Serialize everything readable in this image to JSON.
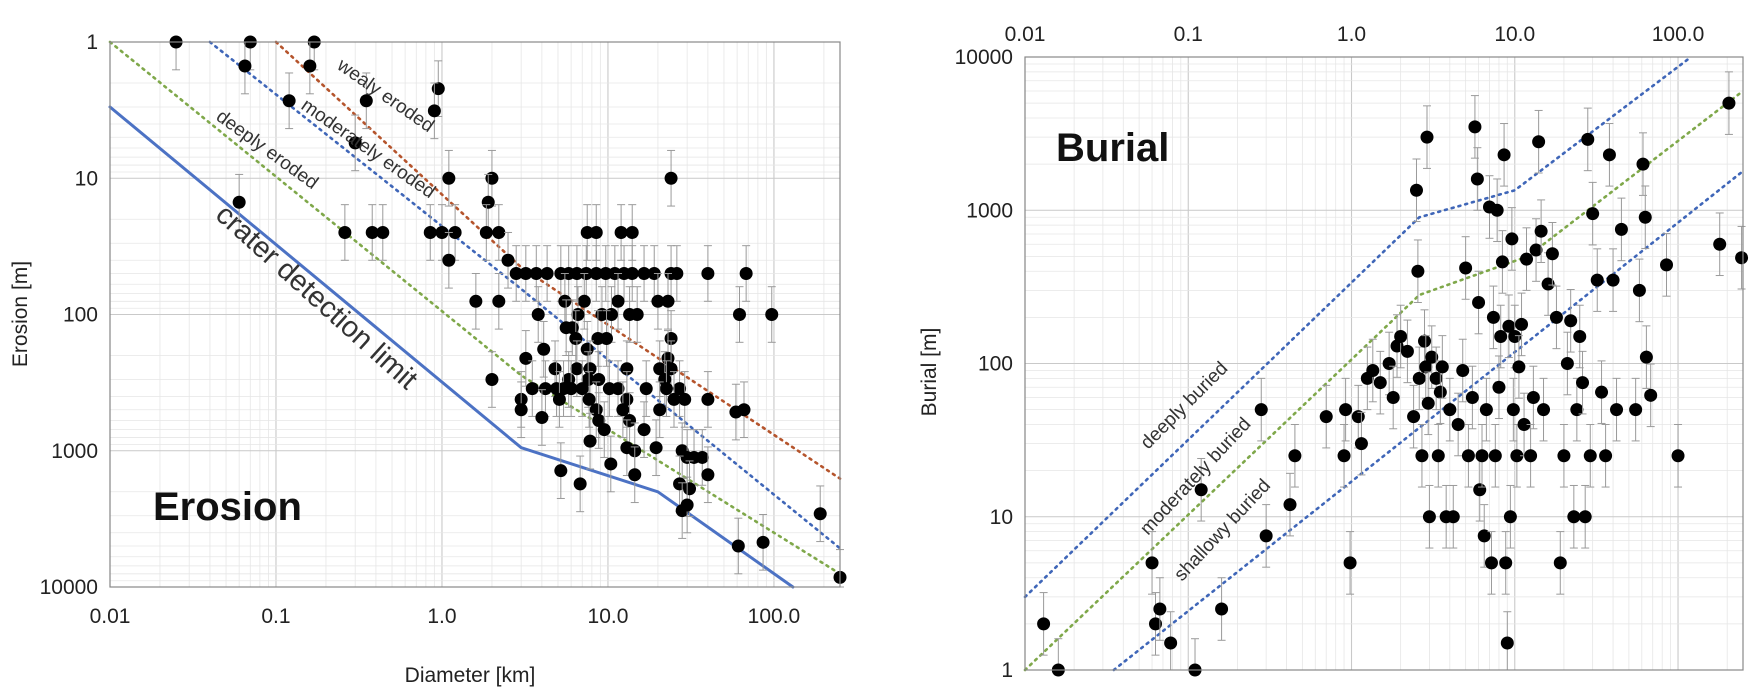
{
  "chart_data": [
    {
      "type": "scatter",
      "title": "Erosion",
      "xlabel": "Diameter [km]",
      "ylabel": "Erosion [m]",
      "x_scale": "log",
      "y_scale": "log",
      "y_inverted": true,
      "xlim": [
        0.01,
        250
      ],
      "ylim": [
        1,
        10000
      ],
      "x_ticks": [
        "0.01",
        "0.1",
        "1.0",
        "10.0",
        "100.0"
      ],
      "y_ticks": [
        "1",
        "10",
        "100",
        "1000",
        "10000"
      ],
      "grid": true,
      "annotations": [
        {
          "text": "wealy eroded",
          "style": "line"
        },
        {
          "text": "moderately eroded",
          "style": "line"
        },
        {
          "text": "deeply eroded",
          "style": "line"
        },
        {
          "text": "crater detection limit",
          "style": "big"
        }
      ],
      "lines": [
        {
          "label": "wealy eroded",
          "color": "#b5542c",
          "dash": "dotted",
          "points": [
            [
              0.1,
              1
            ],
            [
              3,
              45
            ],
            [
              250,
              1600
            ]
          ]
        },
        {
          "label": "moderately eroded",
          "color": "#3f66b8",
          "dash": "dotted",
          "points": [
            [
              0.04,
              1
            ],
            [
              3,
              65
            ],
            [
              250,
              5200
            ]
          ]
        },
        {
          "label": "deeply eroded",
          "color": "#7fa84a",
          "dash": "dotted",
          "points": [
            [
              0.01,
              1
            ],
            [
              3,
              280
            ],
            [
              250,
              8000
            ]
          ]
        },
        {
          "label": "crater detection limit",
          "color": "#4c72c4",
          "dash": "solid",
          "points": [
            [
              0.01,
              3
            ],
            [
              3,
              950
            ],
            [
              20,
              2000
            ],
            [
              130,
              10000
            ]
          ]
        }
      ],
      "points": [
        {
          "x": 0.025,
          "y": 1
        },
        {
          "x": 0.07,
          "y": 1
        },
        {
          "x": 0.17,
          "y": 1
        },
        {
          "x": 0.065,
          "y": 1.5
        },
        {
          "x": 0.16,
          "y": 1.5
        },
        {
          "x": 0.95,
          "y": 2.2
        },
        {
          "x": 0.12,
          "y": 2.7
        },
        {
          "x": 0.35,
          "y": 2.7
        },
        {
          "x": 0.9,
          "y": 3.2
        },
        {
          "x": 0.3,
          "y": 5.5
        },
        {
          "x": 2.0,
          "y": 10
        },
        {
          "x": 1.1,
          "y": 10
        },
        {
          "x": 24,
          "y": 10
        },
        {
          "x": 0.06,
          "y": 15
        },
        {
          "x": 1.9,
          "y": 15
        },
        {
          "x": 0.26,
          "y": 25
        },
        {
          "x": 0.38,
          "y": 25
        },
        {
          "x": 0.44,
          "y": 25
        },
        {
          "x": 0.85,
          "y": 25
        },
        {
          "x": 1.0,
          "y": 25
        },
        {
          "x": 1.2,
          "y": 25
        },
        {
          "x": 1.85,
          "y": 25
        },
        {
          "x": 2.2,
          "y": 25
        },
        {
          "x": 7.5,
          "y": 25
        },
        {
          "x": 8.5,
          "y": 25
        },
        {
          "x": 12,
          "y": 25
        },
        {
          "x": 14,
          "y": 25
        },
        {
          "x": 1.1,
          "y": 40
        },
        {
          "x": 2.5,
          "y": 40
        },
        {
          "x": 2.8,
          "y": 50
        },
        {
          "x": 3.2,
          "y": 50
        },
        {
          "x": 3.7,
          "y": 50
        },
        {
          "x": 4.3,
          "y": 50
        },
        {
          "x": 5.2,
          "y": 50
        },
        {
          "x": 5.8,
          "y": 50
        },
        {
          "x": 6.5,
          "y": 50
        },
        {
          "x": 7.4,
          "y": 50
        },
        {
          "x": 8.5,
          "y": 50
        },
        {
          "x": 9.7,
          "y": 50
        },
        {
          "x": 11,
          "y": 50
        },
        {
          "x": 12.5,
          "y": 50
        },
        {
          "x": 14,
          "y": 50
        },
        {
          "x": 16.5,
          "y": 50
        },
        {
          "x": 19,
          "y": 50
        },
        {
          "x": 24,
          "y": 50
        },
        {
          "x": 26,
          "y": 50
        },
        {
          "x": 40,
          "y": 50
        },
        {
          "x": 68,
          "y": 50
        },
        {
          "x": 1.6,
          "y": 80
        },
        {
          "x": 2.2,
          "y": 80
        },
        {
          "x": 5.5,
          "y": 80
        },
        {
          "x": 7.2,
          "y": 80
        },
        {
          "x": 11.5,
          "y": 80
        },
        {
          "x": 20,
          "y": 80
        },
        {
          "x": 23,
          "y": 80
        },
        {
          "x": 3.8,
          "y": 100
        },
        {
          "x": 6.6,
          "y": 100
        },
        {
          "x": 9.2,
          "y": 100
        },
        {
          "x": 10.5,
          "y": 100
        },
        {
          "x": 13.5,
          "y": 100
        },
        {
          "x": 15,
          "y": 100
        },
        {
          "x": 62,
          "y": 100
        },
        {
          "x": 97,
          "y": 100
        },
        {
          "x": 5.6,
          "y": 125
        },
        {
          "x": 6.1,
          "y": 125
        },
        {
          "x": 6.4,
          "y": 150
        },
        {
          "x": 8.7,
          "y": 150
        },
        {
          "x": 9.8,
          "y": 150
        },
        {
          "x": 24,
          "y": 150
        },
        {
          "x": 4.1,
          "y": 180
        },
        {
          "x": 7.5,
          "y": 180
        },
        {
          "x": 3.2,
          "y": 210
        },
        {
          "x": 23,
          "y": 210
        },
        {
          "x": 4.8,
          "y": 250
        },
        {
          "x": 6.5,
          "y": 250
        },
        {
          "x": 7.8,
          "y": 250
        },
        {
          "x": 13,
          "y": 250
        },
        {
          "x": 20.5,
          "y": 250
        },
        {
          "x": 24,
          "y": 250
        },
        {
          "x": 2.0,
          "y": 300
        },
        {
          "x": 5.8,
          "y": 300
        },
        {
          "x": 7.6,
          "y": 300
        },
        {
          "x": 8.8,
          "y": 300
        },
        {
          "x": 22,
          "y": 300
        },
        {
          "x": 3.5,
          "y": 350
        },
        {
          "x": 4.2,
          "y": 350
        },
        {
          "x": 4.9,
          "y": 350
        },
        {
          "x": 5.4,
          "y": 350
        },
        {
          "x": 6.0,
          "y": 350
        },
        {
          "x": 7.0,
          "y": 350
        },
        {
          "x": 10.2,
          "y": 350
        },
        {
          "x": 11.5,
          "y": 350
        },
        {
          "x": 17,
          "y": 350
        },
        {
          "x": 22.5,
          "y": 350
        },
        {
          "x": 27,
          "y": 350
        },
        {
          "x": 3.0,
          "y": 420
        },
        {
          "x": 5.1,
          "y": 420
        },
        {
          "x": 7.7,
          "y": 420
        },
        {
          "x": 13,
          "y": 420
        },
        {
          "x": 25,
          "y": 420
        },
        {
          "x": 29,
          "y": 420
        },
        {
          "x": 40,
          "y": 420
        },
        {
          "x": 3.0,
          "y": 500
        },
        {
          "x": 8.5,
          "y": 500
        },
        {
          "x": 12.3,
          "y": 500
        },
        {
          "x": 20.5,
          "y": 500
        },
        {
          "x": 66,
          "y": 500
        },
        {
          "x": 59,
          "y": 520
        },
        {
          "x": 4.0,
          "y": 570
        },
        {
          "x": 8.8,
          "y": 600
        },
        {
          "x": 13.5,
          "y": 600
        },
        {
          "x": 9.5,
          "y": 700
        },
        {
          "x": 16.5,
          "y": 700
        },
        {
          "x": 7.8,
          "y": 850
        },
        {
          "x": 13,
          "y": 950
        },
        {
          "x": 19.5,
          "y": 950
        },
        {
          "x": 28,
          "y": 1000
        },
        {
          "x": 14.5,
          "y": 1000
        },
        {
          "x": 33,
          "y": 1120
        },
        {
          "x": 30,
          "y": 1120
        },
        {
          "x": 37,
          "y": 1120
        },
        {
          "x": 10.4,
          "y": 1250
        },
        {
          "x": 5.2,
          "y": 1400
        },
        {
          "x": 14.5,
          "y": 1500
        },
        {
          "x": 40,
          "y": 1500
        },
        {
          "x": 6.8,
          "y": 1750
        },
        {
          "x": 27,
          "y": 1750
        },
        {
          "x": 31,
          "y": 1900
        },
        {
          "x": 28,
          "y": 2750
        },
        {
          "x": 30,
          "y": 2500
        },
        {
          "x": 190,
          "y": 2900
        },
        {
          "x": 86,
          "y": 4700
        },
        {
          "x": 61,
          "y": 5000
        },
        {
          "x": 250,
          "y": 8500
        }
      ]
    },
    {
      "type": "scatter",
      "title": "Burial",
      "xlabel": "",
      "ylabel": "Burial [m]",
      "x_scale": "log",
      "y_scale": "log",
      "x_axis_position": "top",
      "xlim": [
        0.01,
        250
      ],
      "ylim": [
        1,
        10000
      ],
      "x_ticks": [
        "0.01",
        "0.1",
        "1.0",
        "10.0",
        "100.0"
      ],
      "y_ticks": [
        "1",
        "10",
        "100",
        "1000",
        "10000"
      ],
      "grid": true,
      "annotations": [
        {
          "text": "deeply buried",
          "style": "line"
        },
        {
          "text": "moderately buried",
          "style": "line"
        },
        {
          "text": "shallowy buried",
          "style": "line"
        }
      ],
      "lines": [
        {
          "label": "deeply buried",
          "color": "#3f66b8",
          "dash": "dotted",
          "points": [
            [
              0.01,
              3
            ],
            [
              2.6,
              900
            ],
            [
              10,
              1350
            ],
            [
              120,
              10000
            ]
          ]
        },
        {
          "label": "moderately buried",
          "color": "#7fa84a",
          "dash": "dotted",
          "points": [
            [
              0.01,
              1
            ],
            [
              2.6,
              280
            ],
            [
              12,
              500
            ],
            [
              250,
              6000
            ]
          ]
        },
        {
          "label": "shallowy buried",
          "color": "#3f66b8",
          "dash": "dotted",
          "points": [
            [
              0.035,
              1
            ],
            [
              250,
              1800
            ]
          ]
        }
      ],
      "points": [
        {
          "x": 0.013,
          "y": 2
        },
        {
          "x": 0.016,
          "y": 1
        },
        {
          "x": 0.11,
          "y": 1
        },
        {
          "x": 0.06,
          "y": 5
        },
        {
          "x": 0.063,
          "y": 2
        },
        {
          "x": 0.067,
          "y": 2.5
        },
        {
          "x": 0.078,
          "y": 1.5
        },
        {
          "x": 0.12,
          "y": 15
        },
        {
          "x": 0.16,
          "y": 2.5
        },
        {
          "x": 0.28,
          "y": 50
        },
        {
          "x": 0.3,
          "y": 7.5
        },
        {
          "x": 0.42,
          "y": 12
        },
        {
          "x": 0.45,
          "y": 25
        },
        {
          "x": 0.7,
          "y": 45
        },
        {
          "x": 0.9,
          "y": 25
        },
        {
          "x": 0.92,
          "y": 50
        },
        {
          "x": 0.98,
          "y": 5
        },
        {
          "x": 1.1,
          "y": 45
        },
        {
          "x": 1.15,
          "y": 30
        },
        {
          "x": 1.25,
          "y": 80
        },
        {
          "x": 1.35,
          "y": 90
        },
        {
          "x": 1.5,
          "y": 75
        },
        {
          "x": 1.7,
          "y": 100
        },
        {
          "x": 1.8,
          "y": 60
        },
        {
          "x": 1.9,
          "y": 130
        },
        {
          "x": 2.0,
          "y": 150
        },
        {
          "x": 2.2,
          "y": 120
        },
        {
          "x": 2.4,
          "y": 45
        },
        {
          "x": 2.5,
          "y": 1350
        },
        {
          "x": 2.55,
          "y": 400
        },
        {
          "x": 2.6,
          "y": 80
        },
        {
          "x": 2.7,
          "y": 25
        },
        {
          "x": 2.8,
          "y": 140
        },
        {
          "x": 2.85,
          "y": 95
        },
        {
          "x": 2.9,
          "y": 3000
        },
        {
          "x": 2.95,
          "y": 55
        },
        {
          "x": 3.0,
          "y": 10
        },
        {
          "x": 3.1,
          "y": 110
        },
        {
          "x": 3.3,
          "y": 80
        },
        {
          "x": 3.4,
          "y": 25
        },
        {
          "x": 3.5,
          "y": 65
        },
        {
          "x": 3.6,
          "y": 95
        },
        {
          "x": 3.8,
          "y": 10
        },
        {
          "x": 4.0,
          "y": 50
        },
        {
          "x": 4.2,
          "y": 10
        },
        {
          "x": 4.5,
          "y": 40
        },
        {
          "x": 4.8,
          "y": 90
        },
        {
          "x": 5.0,
          "y": 420
        },
        {
          "x": 5.2,
          "y": 25
        },
        {
          "x": 5.5,
          "y": 60
        },
        {
          "x": 5.7,
          "y": 3500
        },
        {
          "x": 5.9,
          "y": 1600
        },
        {
          "x": 6.0,
          "y": 250
        },
        {
          "x": 6.1,
          "y": 15
        },
        {
          "x": 6.3,
          "y": 25
        },
        {
          "x": 6.5,
          "y": 7.5
        },
        {
          "x": 6.7,
          "y": 50
        },
        {
          "x": 7.0,
          "y": 1050
        },
        {
          "x": 7.2,
          "y": 5
        },
        {
          "x": 7.4,
          "y": 200
        },
        {
          "x": 7.6,
          "y": 25
        },
        {
          "x": 7.8,
          "y": 1000
        },
        {
          "x": 8.0,
          "y": 70
        },
        {
          "x": 8.2,
          "y": 150
        },
        {
          "x": 8.4,
          "y": 460
        },
        {
          "x": 8.6,
          "y": 2300
        },
        {
          "x": 8.8,
          "y": 5
        },
        {
          "x": 9.0,
          "y": 1.5
        },
        {
          "x": 9.2,
          "y": 175
        },
        {
          "x": 9.4,
          "y": 10
        },
        {
          "x": 9.6,
          "y": 650
        },
        {
          "x": 9.8,
          "y": 50
        },
        {
          "x": 10.0,
          "y": 150
        },
        {
          "x": 10.3,
          "y": 25
        },
        {
          "x": 10.6,
          "y": 95
        },
        {
          "x": 11.0,
          "y": 180
        },
        {
          "x": 11.4,
          "y": 40
        },
        {
          "x": 11.8,
          "y": 480
        },
        {
          "x": 12.5,
          "y": 25
        },
        {
          "x": 13.0,
          "y": 60
        },
        {
          "x": 13.5,
          "y": 550
        },
        {
          "x": 14.0,
          "y": 2800
        },
        {
          "x": 14.5,
          "y": 730
        },
        {
          "x": 15.0,
          "y": 50
        },
        {
          "x": 16.0,
          "y": 330
        },
        {
          "x": 17.0,
          "y": 520
        },
        {
          "x": 18.0,
          "y": 200
        },
        {
          "x": 19.0,
          "y": 5
        },
        {
          "x": 20.0,
          "y": 25
        },
        {
          "x": 21.0,
          "y": 100
        },
        {
          "x": 22.0,
          "y": 190
        },
        {
          "x": 23.0,
          "y": 10
        },
        {
          "x": 24.0,
          "y": 50
        },
        {
          "x": 25.0,
          "y": 150
        },
        {
          "x": 26.0,
          "y": 75
        },
        {
          "x": 27.0,
          "y": 10
        },
        {
          "x": 28.0,
          "y": 2900
        },
        {
          "x": 29.0,
          "y": 25
        },
        {
          "x": 30.0,
          "y": 950
        },
        {
          "x": 32.0,
          "y": 350
        },
        {
          "x": 34.0,
          "y": 65
        },
        {
          "x": 36.0,
          "y": 25
        },
        {
          "x": 38.0,
          "y": 2300
        },
        {
          "x": 40.0,
          "y": 350
        },
        {
          "x": 42.0,
          "y": 50
        },
        {
          "x": 45.0,
          "y": 750
        },
        {
          "x": 55.0,
          "y": 50
        },
        {
          "x": 58.0,
          "y": 300
        },
        {
          "x": 61.0,
          "y": 2000
        },
        {
          "x": 63.0,
          "y": 900
        },
        {
          "x": 64.0,
          "y": 110
        },
        {
          "x": 68.0,
          "y": 62
        },
        {
          "x": 85.0,
          "y": 440
        },
        {
          "x": 100.0,
          "y": 25
        },
        {
          "x": 180.0,
          "y": 600
        },
        {
          "x": 205.0,
          "y": 5000
        },
        {
          "x": 245.0,
          "y": 490
        }
      ]
    }
  ]
}
